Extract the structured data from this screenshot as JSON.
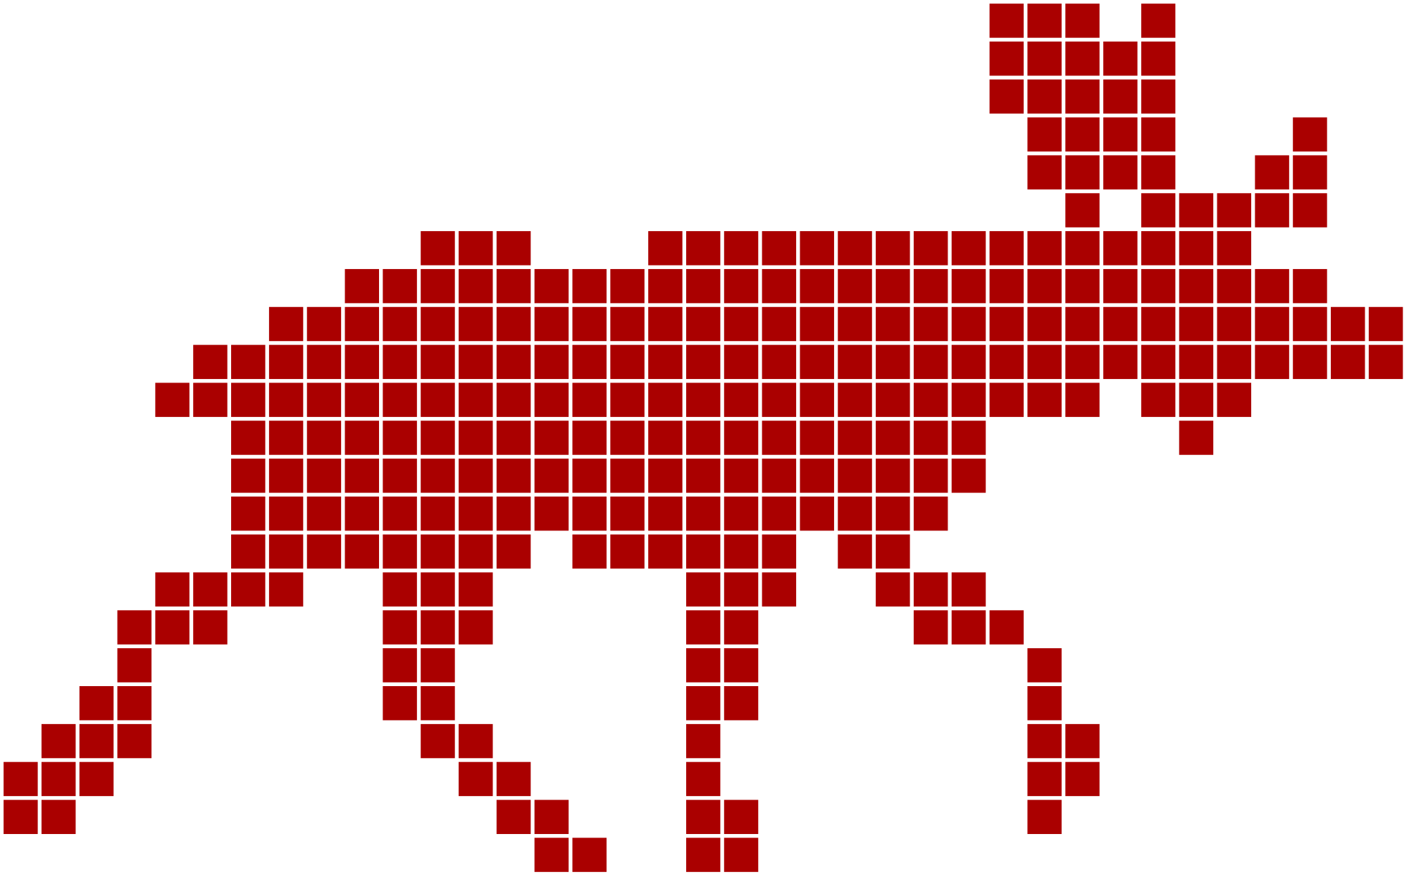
{
  "figure": {
    "fill_color": "#AA0000",
    "background_color": "#FFFFFF",
    "bitmap": [
      "..........................###.#......",
      "..........................#####......",
      "..........................#####......",
      "...........................####...#..",
      "...........................####..##..",
      "............................#.#####..",
      "...........###...################....",
      ".........##########################..",
      ".......##############################",
      ".....################################",
      "....#########################.###....",
      "......####################.....#.....",
      "......####################...........",
      "......###################............",
      "......########.######.##.............",
      "....####..###.....###..###...........",
      "...###....###.....##....###..........",
      "...#......##......##.......#.........",
      "..##......##......##.......#.........",
      ".###.......##.....#........##........",
      "###.........##....#........##........",
      "##...........##...##.......#.........",
      "..............##..##................."
    ]
  }
}
